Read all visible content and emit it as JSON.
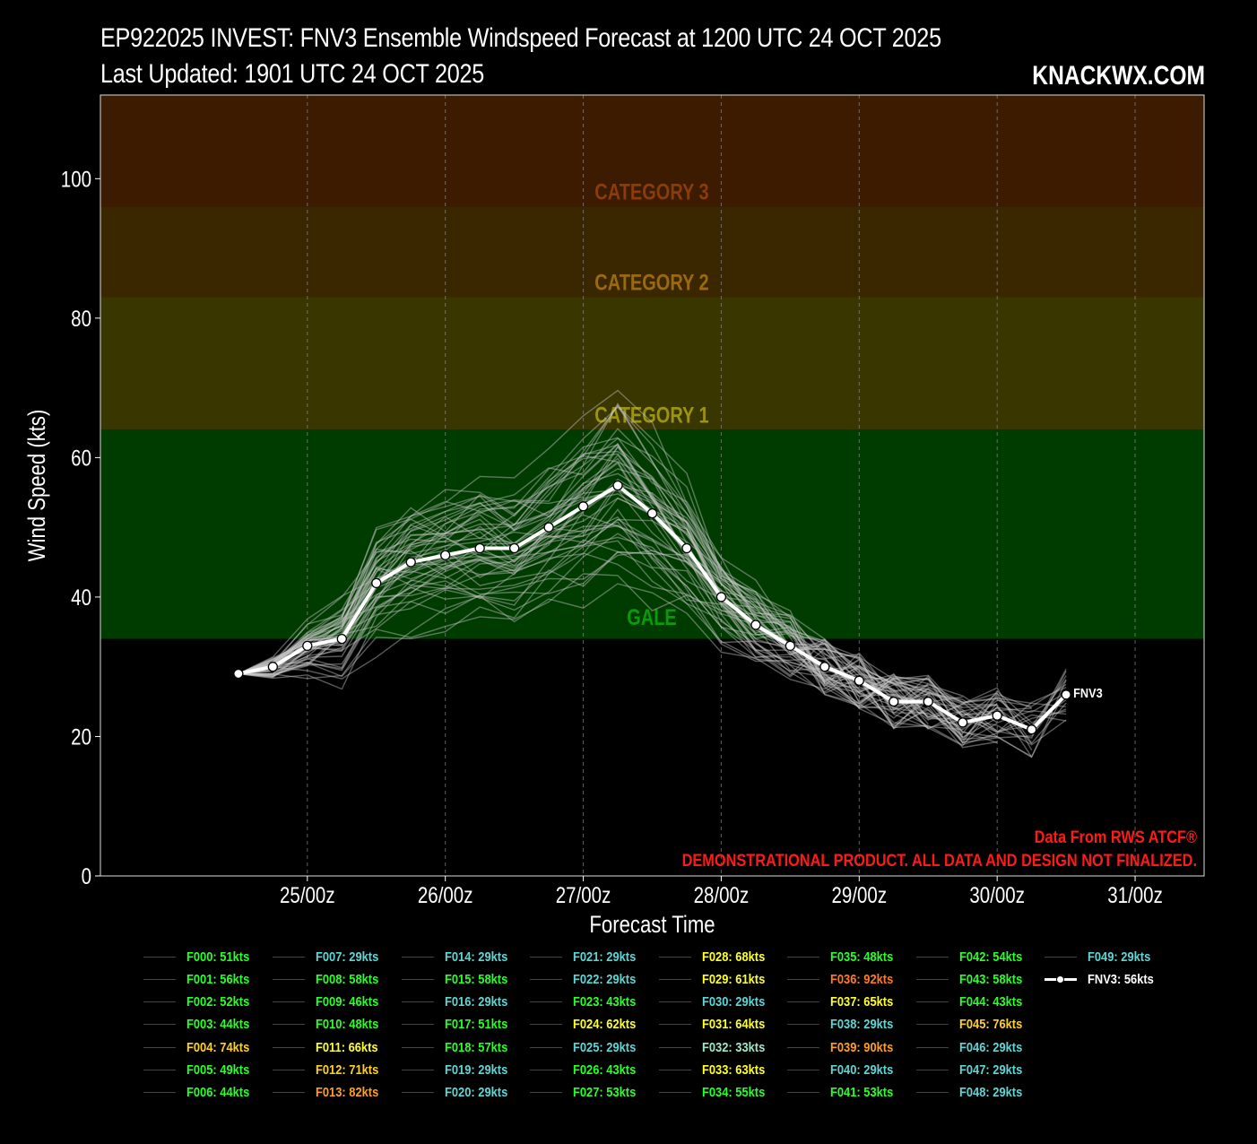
{
  "header": {
    "title_line1": "EP922025 INVEST: FNV3 Ensemble Windspeed Forecast at 1200 UTC 24 OCT 2025",
    "title_line2": "Last Updated: 1901 UTC 24 OCT 2025",
    "brand": "KNACKWX.COM"
  },
  "notes": {
    "source": "Data From RWS ATCF®",
    "disclaimer": "DEMONSTRATIONAL PRODUCT. ALL DATA AND DESIGN NOT FINALIZED."
  },
  "chart_data": {
    "type": "line",
    "title": "EP922025 INVEST: FNV3 Ensemble Windspeed Forecast at 1200 UTC 24 OCT 2025",
    "xlabel": "Forecast Time",
    "ylabel": "Wind Speed (kts)",
    "ylim": [
      0,
      112
    ],
    "xlim_hours_since_24_oct_00z": [
      -12,
      180
    ],
    "xticks": [
      {
        "label": "25/00z",
        "hour": 24
      },
      {
        "label": "26/00z",
        "hour": 48
      },
      {
        "label": "27/00z",
        "hour": 72
      },
      {
        "label": "28/00z",
        "hour": 96
      },
      {
        "label": "29/00z",
        "hour": 120
      },
      {
        "label": "30/00z",
        "hour": 144
      },
      {
        "label": "31/00z",
        "hour": 168
      }
    ],
    "yticks": [
      0,
      20,
      40,
      60,
      80,
      100
    ],
    "grid": "vertical dashed",
    "intensity_bands": [
      {
        "label": "GALE",
        "from": 34,
        "to": 64,
        "fill": "#003c00",
        "text_color": "#0a9a0a",
        "label_value": 36
      },
      {
        "label": "CATEGORY 1",
        "from": 64,
        "to": 83,
        "fill": "#3a3600",
        "text_color": "#9a9410",
        "label_value": 65
      },
      {
        "label": "CATEGORY 2",
        "from": 83,
        "to": 96,
        "fill": "#3a2700",
        "text_color": "#9a6a10",
        "label_value": 84
      },
      {
        "label": "CATEGORY 3",
        "from": 96,
        "to": 112,
        "fill": "#3c1b00",
        "text_color": "#8a3c0a",
        "label_value": 97
      }
    ],
    "fnv3_mean": {
      "name": "FNV3",
      "legend": "FNV3: 56kts",
      "hours": [
        12,
        18,
        24,
        30,
        36,
        42,
        48,
        54,
        60,
        66,
        72,
        78,
        84,
        90,
        96,
        102,
        108,
        114,
        120,
        126,
        132,
        138,
        144,
        150,
        156
      ],
      "values": [
        29,
        30,
        33,
        34,
        42,
        45,
        46,
        47,
        47,
        50,
        53,
        56,
        52,
        47,
        40,
        36,
        33,
        30,
        28,
        25,
        25,
        22,
        23,
        21,
        26
      ]
    },
    "ensemble_members": [
      {
        "name": "F000",
        "label": "F000: 51kts",
        "color": "#2aff2a"
      },
      {
        "name": "F001",
        "label": "F001: 56kts",
        "color": "#2aff2a"
      },
      {
        "name": "F002",
        "label": "F002: 52kts",
        "color": "#2aff2a"
      },
      {
        "name": "F003",
        "label": "F003: 44kts",
        "color": "#2aff2a"
      },
      {
        "name": "F004",
        "label": "F004: 74kts",
        "color": "#ffd21f"
      },
      {
        "name": "F005",
        "label": "F005: 49kts",
        "color": "#2aff2a"
      },
      {
        "name": "F006",
        "label": "F006: 44kts",
        "color": "#2aff2a"
      },
      {
        "name": "F007",
        "label": "F007: 29kts",
        "color": "#5fd6d6"
      },
      {
        "name": "F008",
        "label": "F008: 58kts",
        "color": "#2aff2a"
      },
      {
        "name": "F009",
        "label": "F009: 46kts",
        "color": "#2aff2a"
      },
      {
        "name": "F010",
        "label": "F010: 48kts",
        "color": "#2aff2a"
      },
      {
        "name": "F011",
        "label": "F011: 66kts",
        "color": "#ffff2a"
      },
      {
        "name": "F012",
        "label": "F012: 71kts",
        "color": "#ffd21f"
      },
      {
        "name": "F013",
        "label": "F013: 82kts",
        "color": "#ff9f1f"
      },
      {
        "name": "F014",
        "label": "F014: 29kts",
        "color": "#5fd6d6"
      },
      {
        "name": "F015",
        "label": "F015: 58kts",
        "color": "#2aff2a"
      },
      {
        "name": "F016",
        "label": "F016: 29kts",
        "color": "#5fd6d6"
      },
      {
        "name": "F017",
        "label": "F017: 51kts",
        "color": "#2aff2a"
      },
      {
        "name": "F018",
        "label": "F018: 57kts",
        "color": "#2aff2a"
      },
      {
        "name": "F019",
        "label": "F019: 29kts",
        "color": "#5fd6d6"
      },
      {
        "name": "F020",
        "label": "F020: 29kts",
        "color": "#5fd6d6"
      },
      {
        "name": "F021",
        "label": "F021: 29kts",
        "color": "#5fd6d6"
      },
      {
        "name": "F022",
        "label": "F022: 29kts",
        "color": "#5fd6d6"
      },
      {
        "name": "F023",
        "label": "F023: 43kts",
        "color": "#2aff2a"
      },
      {
        "name": "F024",
        "label": "F024: 62kts",
        "color": "#ffff2a"
      },
      {
        "name": "F025",
        "label": "F025: 29kts",
        "color": "#5fd6d6"
      },
      {
        "name": "F026",
        "label": "F026: 43kts",
        "color": "#2aff2a"
      },
      {
        "name": "F027",
        "label": "F027: 53kts",
        "color": "#2aff2a"
      },
      {
        "name": "F028",
        "label": "F028: 68kts",
        "color": "#ffff2a"
      },
      {
        "name": "F029",
        "label": "F029: 61kts",
        "color": "#ffff2a"
      },
      {
        "name": "F030",
        "label": "F030: 29kts",
        "color": "#5fd6d6"
      },
      {
        "name": "F031",
        "label": "F031: 64kts",
        "color": "#ffff2a"
      },
      {
        "name": "F032",
        "label": "F032: 33kts",
        "color": "#9fe6c6"
      },
      {
        "name": "F033",
        "label": "F033: 63kts",
        "color": "#ffff2a"
      },
      {
        "name": "F034",
        "label": "F034: 55kts",
        "color": "#2aff2a"
      },
      {
        "name": "F035",
        "label": "F035: 48kts",
        "color": "#2aff2a"
      },
      {
        "name": "F036",
        "label": "F036: 92kts",
        "color": "#ff7a1f"
      },
      {
        "name": "F037",
        "label": "F037: 65kts",
        "color": "#ffff2a"
      },
      {
        "name": "F038",
        "label": "F038: 29kts",
        "color": "#5fd6d6"
      },
      {
        "name": "F039",
        "label": "F039: 90kts",
        "color": "#ff9f1f"
      },
      {
        "name": "F040",
        "label": "F040: 29kts",
        "color": "#5fd6d6"
      },
      {
        "name": "F041",
        "label": "F041: 53kts",
        "color": "#2aff2a"
      },
      {
        "name": "F042",
        "label": "F042: 54kts",
        "color": "#2aff2a"
      },
      {
        "name": "F043",
        "label": "F043: 58kts",
        "color": "#2aff2a"
      },
      {
        "name": "F044",
        "label": "F044: 43kts",
        "color": "#2aff2a"
      },
      {
        "name": "F045",
        "label": "F045: 76kts",
        "color": "#ffd21f"
      },
      {
        "name": "F046",
        "label": "F046: 29kts",
        "color": "#5fd6d6"
      },
      {
        "name": "F047",
        "label": "F047: 29kts",
        "color": "#5fd6d6"
      },
      {
        "name": "F048",
        "label": "F048: 29kts",
        "color": "#5fd6d6"
      },
      {
        "name": "F049",
        "label": "F049: 29kts",
        "color": "#5fd6d6"
      }
    ]
  }
}
